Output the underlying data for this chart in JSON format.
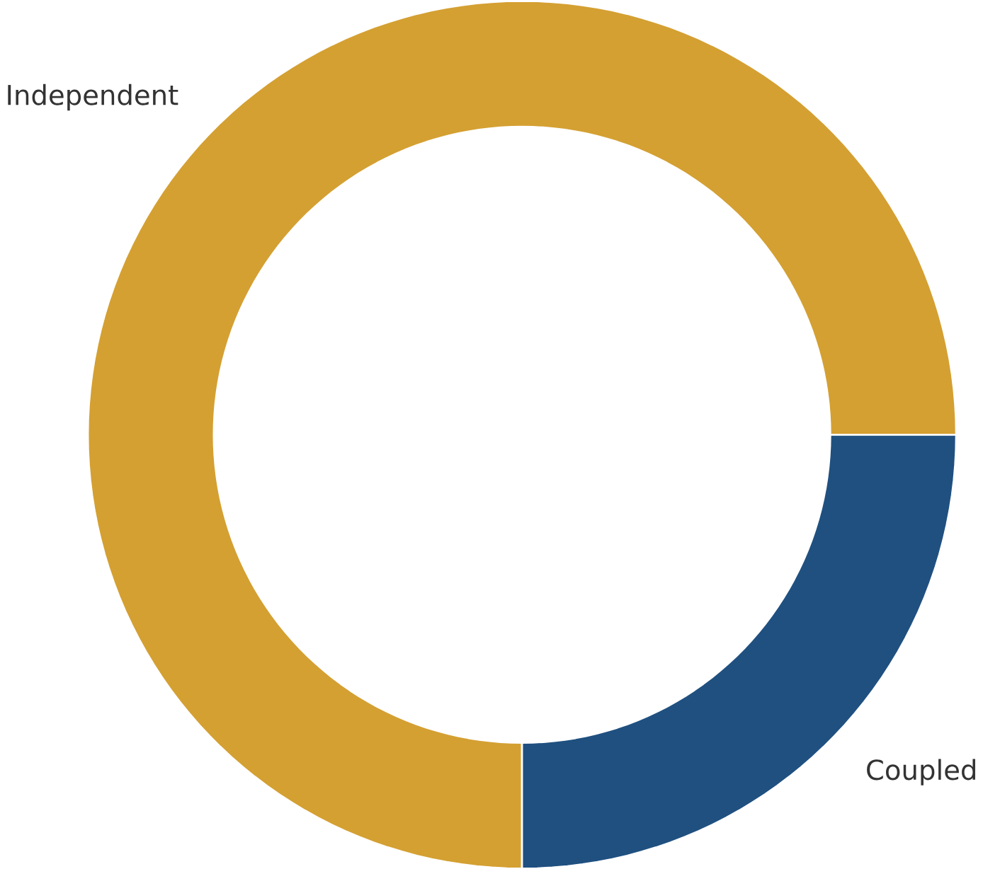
{
  "chart_data": {
    "type": "donut",
    "categories": [
      "Independent",
      "Coupled"
    ],
    "values": [
      75,
      25
    ],
    "colors": [
      "#d4a032",
      "#1f5080"
    ]
  }
}
